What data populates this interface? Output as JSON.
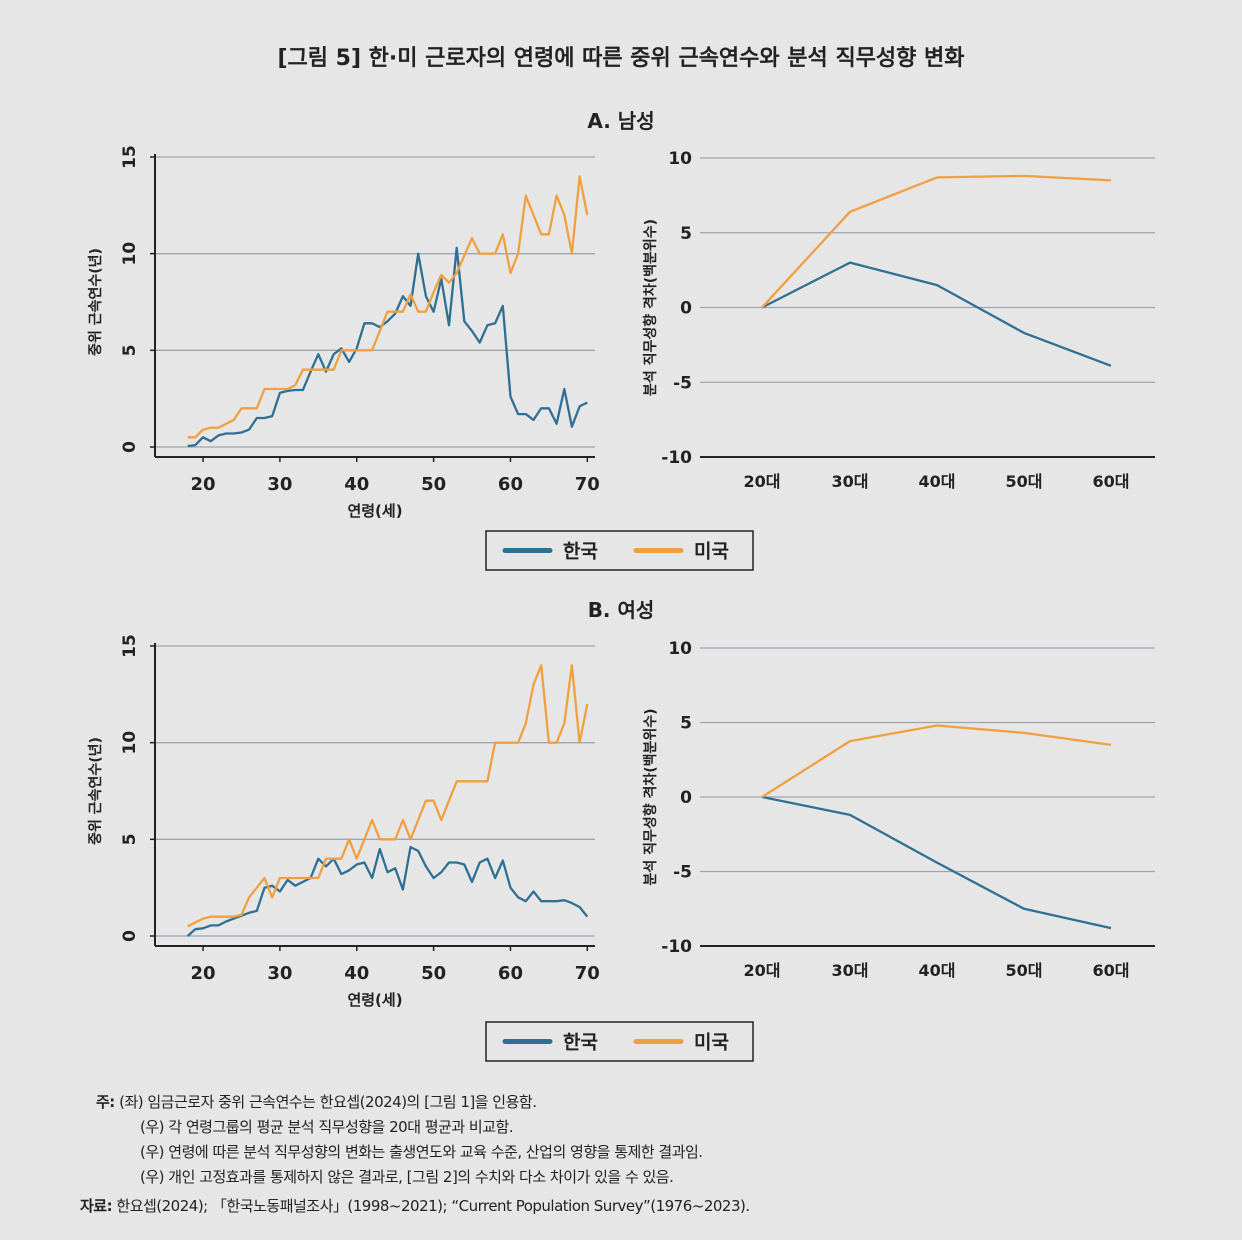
{
  "title": "[그림 5] 한·미 근로자의 연령에 따른 중위 근속연수와 분석 직무성향 변화",
  "colors": {
    "korea": "#2f6f94",
    "us": "#f0a040",
    "grid": "#9aa6b0",
    "background": "#e6e6e6"
  },
  "legend": {
    "korea": "한국",
    "us": "미국"
  },
  "chart_data": [
    {
      "panel": "A. 남성",
      "type": "line",
      "ylabel": "중위 근속연수(년)",
      "xlabel": "연령(세)",
      "xticks": [
        20,
        30,
        40,
        50,
        60,
        70
      ],
      "yticks": [
        0,
        5,
        10,
        15
      ],
      "ylim": [
        0,
        15
      ],
      "grid": true,
      "x": [
        18,
        19,
        20,
        21,
        22,
        23,
        24,
        25,
        26,
        27,
        28,
        29,
        30,
        31,
        32,
        33,
        34,
        35,
        36,
        37,
        38,
        39,
        40,
        41,
        42,
        43,
        44,
        45,
        46,
        47,
        48,
        49,
        50,
        51,
        52,
        53,
        54,
        55,
        56,
        57,
        58,
        59,
        60,
        61,
        62,
        63,
        64,
        65,
        66,
        67,
        68,
        69,
        70
      ],
      "series": [
        {
          "name": "한국",
          "values": [
            0.05,
            0.1,
            0.5,
            0.3,
            0.6,
            0.7,
            0.7,
            0.75,
            0.9,
            1.5,
            1.5,
            1.6,
            2.8,
            2.9,
            2.95,
            2.95,
            3.9,
            4.8,
            3.9,
            4.8,
            5.1,
            4.4,
            5.1,
            6.4,
            6.4,
            6.2,
            6.5,
            6.9,
            7.8,
            7.3,
            10.0,
            7.8,
            7.0,
            8.7,
            6.3,
            10.3,
            6.5,
            6.0,
            5.4,
            6.3,
            6.4,
            7.3,
            2.6,
            1.7,
            1.7,
            1.4,
            2.0,
            2.0,
            1.2,
            3.0,
            1.05,
            2.1,
            2.3
          ]
        },
        {
          "name": "미국",
          "values": [
            0.5,
            0.5,
            0.9,
            1,
            1,
            1.2,
            1.4,
            2,
            2,
            2,
            3,
            3,
            3,
            3,
            3.2,
            4,
            4,
            4,
            4,
            4,
            5,
            5,
            5,
            5,
            5,
            6,
            7,
            7,
            7,
            7.9,
            7,
            7,
            8,
            8.9,
            8.5,
            9,
            9.9,
            10.8,
            10,
            10,
            10,
            11,
            9,
            10,
            13,
            12,
            11,
            11,
            13,
            12,
            10,
            14,
            12
          ]
        }
      ]
    },
    {
      "panel": "A. 남성",
      "type": "line",
      "ylabel": "분석 직무성향 격차(백분위수)",
      "categories": [
        "20대",
        "30대",
        "40대",
        "50대",
        "60대"
      ],
      "yticks": [
        -10,
        -5,
        0,
        5,
        10
      ],
      "ylim": [
        -10,
        10
      ],
      "grid": true,
      "series": [
        {
          "name": "한국",
          "values": [
            0,
            3.0,
            1.5,
            -1.7,
            -3.9
          ]
        },
        {
          "name": "미국",
          "values": [
            0,
            6.4,
            8.7,
            8.8,
            8.5
          ]
        }
      ]
    },
    {
      "panel": "B. 여성",
      "type": "line",
      "ylabel": "중위 근속연수(년)",
      "xlabel": "연령(세)",
      "xticks": [
        20,
        30,
        40,
        50,
        60,
        70
      ],
      "yticks": [
        0,
        5,
        10,
        15
      ],
      "ylim": [
        0,
        15
      ],
      "grid": true,
      "x": [
        18,
        19,
        20,
        21,
        22,
        23,
        24,
        25,
        26,
        27,
        28,
        29,
        30,
        31,
        32,
        33,
        34,
        35,
        36,
        37,
        38,
        39,
        40,
        41,
        42,
        43,
        44,
        45,
        46,
        47,
        48,
        49,
        50,
        51,
        52,
        53,
        54,
        55,
        56,
        57,
        58,
        59,
        60,
        61,
        62,
        63,
        64,
        65,
        66,
        67,
        68,
        69,
        70
      ],
      "series": [
        {
          "name": "한국",
          "values": [
            0,
            0.35,
            0.4,
            0.55,
            0.55,
            0.75,
            0.9,
            1.05,
            1.2,
            1.3,
            2.5,
            2.6,
            2.3,
            2.9,
            2.6,
            2.8,
            3.0,
            4.0,
            3.6,
            4.0,
            3.2,
            3.4,
            3.7,
            3.8,
            3.0,
            4.5,
            3.3,
            3.5,
            2.4,
            4.6,
            4.4,
            3.6,
            3.0,
            3.3,
            3.8,
            3.8,
            3.7,
            2.8,
            3.8,
            4.0,
            3.0,
            3.9,
            2.5,
            2.0,
            1.8,
            2.3,
            1.8,
            1.8,
            1.8,
            1.85,
            1.7,
            1.5,
            1.0
          ]
        },
        {
          "name": "미국",
          "values": [
            0.5,
            0.7,
            0.9,
            1,
            1,
            1,
            1,
            1.1,
            2,
            2.5,
            3,
            2,
            3,
            3,
            3,
            3,
            3,
            3,
            4,
            4,
            4,
            5,
            4,
            5,
            6,
            5,
            5,
            5,
            6,
            5,
            6,
            7,
            7,
            6,
            7,
            8,
            8,
            8,
            8,
            8,
            10,
            10,
            10,
            10,
            11,
            13,
            14,
            10,
            10,
            11,
            14,
            10,
            12
          ]
        }
      ]
    },
    {
      "panel": "B. 여성",
      "type": "line",
      "ylabel": "분석 직무성향 격차(백분위수)",
      "categories": [
        "20대",
        "30대",
        "40대",
        "50대",
        "60대"
      ],
      "yticks": [
        -10,
        -5,
        0,
        5,
        10
      ],
      "ylim": [
        -10,
        10
      ],
      "grid": true,
      "series": [
        {
          "name": "한국",
          "values": [
            0,
            -1.2,
            -4.4,
            -7.5,
            -8.8
          ]
        },
        {
          "name": "미국",
          "values": [
            0,
            3.75,
            4.8,
            4.3,
            3.5
          ]
        }
      ]
    }
  ],
  "notes": {
    "label": "주:",
    "lines": [
      "(좌) 임금근로자 중위 근속연수는 한요셉(2024)의 [그림 1]을 인용함.",
      "(우) 각 연령그룹의 평균 분석 직무성향을 20대 평균과 비교함.",
      "(우) 연령에 따른 분석 직무성향의 변화는 출생연도와 교육 수준, 산업의 영향을 통제한 결과임.",
      "(우) 개인 고정효과를 통제하지 않은 결과로, [그림 2]의 수치와 다소 차이가 있을 수 있음."
    ],
    "source_label": "자료:",
    "source": "한요셉(2024); 「한국노동패널조사」(1998~2021); “Current Population Survey”(1976~2023)."
  }
}
